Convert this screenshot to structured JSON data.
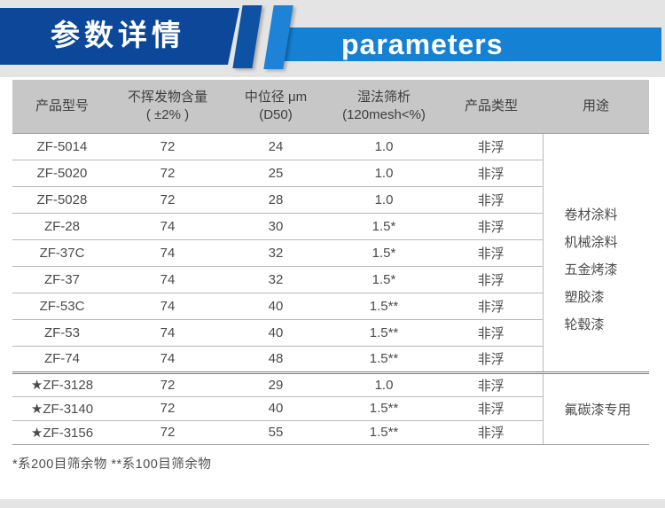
{
  "theme": {
    "dark_blue": "#0c479a",
    "light_blue": "#1581d4",
    "header_gray": "#c7c7c7"
  },
  "banner": {
    "title_cn": "参数详情",
    "title_en": "parameters"
  },
  "table": {
    "columns": [
      {
        "line1": "产品型号",
        "line2": ""
      },
      {
        "line1": "不挥发物含量",
        "line2": "( ±2% )"
      },
      {
        "line1": "中位径 μm",
        "line2": "(D50)"
      },
      {
        "line1": "湿法筛析",
        "line2": "(120mesh<%)"
      },
      {
        "line1": "产品类型",
        "line2": ""
      },
      {
        "line1": "用途",
        "line2": ""
      }
    ],
    "groups": [
      {
        "usage": [
          "卷材涂料",
          "机械涂料",
          "五金烤漆",
          "塑胶漆",
          "轮毂漆"
        ],
        "rows": [
          [
            "ZF-5014",
            "72",
            "24",
            "1.0",
            "非浮"
          ],
          [
            "ZF-5020",
            "72",
            "25",
            "1.0",
            "非浮"
          ],
          [
            "ZF-5028",
            "72",
            "28",
            "1.0",
            "非浮"
          ],
          [
            "ZF-28",
            "74",
            "30",
            "1.5*",
            "非浮"
          ],
          [
            "ZF-37C",
            "74",
            "32",
            "1.5*",
            "非浮"
          ],
          [
            "ZF-37",
            "74",
            "32",
            "1.5*",
            "非浮"
          ],
          [
            "ZF-53C",
            "74",
            "40",
            "1.5**",
            "非浮"
          ],
          [
            "ZF-53",
            "74",
            "40",
            "1.5**",
            "非浮"
          ],
          [
            "ZF-74",
            "74",
            "48",
            "1.5**",
            "非浮"
          ]
        ]
      },
      {
        "usage": [
          "氟碳漆专用"
        ],
        "rows": [
          [
            "★ZF-3128",
            "72",
            "29",
            "1.0",
            "非浮"
          ],
          [
            "★ZF-3140",
            "72",
            "40",
            "1.5**",
            "非浮"
          ],
          [
            "★ZF-3156",
            "72",
            "55",
            "1.5**",
            "非浮"
          ]
        ]
      }
    ],
    "footnote": "*系200目筛余物  **系100目筛余物"
  }
}
